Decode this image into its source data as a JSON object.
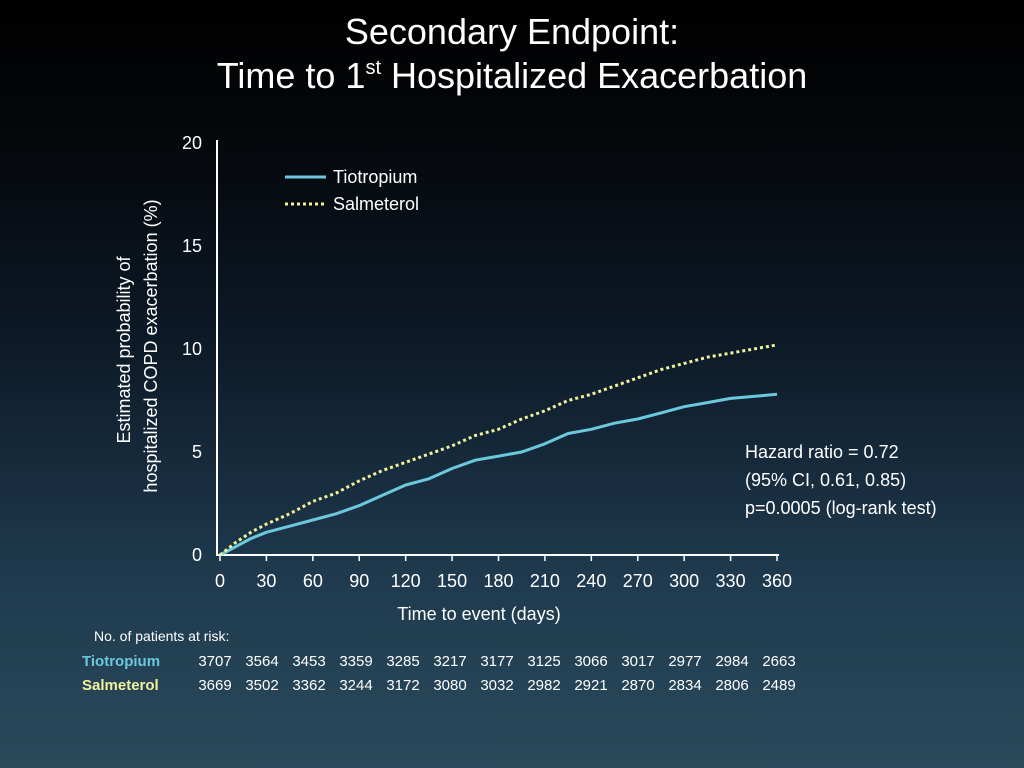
{
  "title": {
    "line1": "Secondary Endpoint:",
    "line2_prefix": "Time to 1",
    "line2_sup": "st",
    "line2_suffix": " Hospitalized Exacerbation"
  },
  "colors": {
    "tiotropium": "#6cc8dd",
    "salmeterol": "#f2f29a",
    "axis": "#ffffff"
  },
  "hazard": {
    "line1": "Hazard ratio = 0.72",
    "line2": "(95% CI, 0.61, 0.85)",
    "line3": "p=0.0005 (log-rank test)"
  },
  "risk_table": {
    "caption": "No. of patients at risk:",
    "rows": [
      {
        "name": "Tiotropium",
        "values": [
          "3707",
          "3564",
          "3453",
          "3359",
          "3285",
          "3217",
          "3177",
          "3125",
          "3066",
          "3017",
          "2977",
          "2984",
          "2663"
        ]
      },
      {
        "name": "Salmeterol",
        "values": [
          "3669",
          "3502",
          "3362",
          "3244",
          "3172",
          "3080",
          "3032",
          "2982",
          "2921",
          "2870",
          "2834",
          "2806",
          "2489"
        ]
      }
    ]
  },
  "chart_data": {
    "type": "line",
    "xlabel": "Time to event (days)",
    "ylabel_line1": "Estimated probability of",
    "ylabel_line2": "hospitalized COPD exacerbation (%)",
    "xlim": [
      0,
      360
    ],
    "ylim": [
      0,
      20
    ],
    "xticks": [
      0,
      30,
      60,
      90,
      120,
      150,
      180,
      210,
      240,
      270,
      300,
      330,
      360
    ],
    "yticks": [
      0,
      5,
      10,
      15,
      20
    ],
    "grid": false,
    "legend_position": "top-left",
    "series": [
      {
        "name": "Tiotropium",
        "style": "solid",
        "points": [
          [
            0,
            0
          ],
          [
            10,
            0.4
          ],
          [
            20,
            0.8
          ],
          [
            30,
            1.1
          ],
          [
            45,
            1.4
          ],
          [
            60,
            1.7
          ],
          [
            75,
            2.0
          ],
          [
            90,
            2.4
          ],
          [
            105,
            2.9
          ],
          [
            120,
            3.4
          ],
          [
            135,
            3.7
          ],
          [
            150,
            4.2
          ],
          [
            165,
            4.6
          ],
          [
            180,
            4.8
          ],
          [
            195,
            5.0
          ],
          [
            210,
            5.4
          ],
          [
            225,
            5.9
          ],
          [
            240,
            6.1
          ],
          [
            255,
            6.4
          ],
          [
            270,
            6.6
          ],
          [
            285,
            6.9
          ],
          [
            300,
            7.2
          ],
          [
            315,
            7.4
          ],
          [
            330,
            7.6
          ],
          [
            345,
            7.7
          ],
          [
            360,
            7.8
          ]
        ]
      },
      {
        "name": "Salmeterol",
        "style": "dotted",
        "points": [
          [
            0,
            0
          ],
          [
            10,
            0.6
          ],
          [
            20,
            1.1
          ],
          [
            30,
            1.5
          ],
          [
            45,
            2.0
          ],
          [
            60,
            2.6
          ],
          [
            75,
            3.0
          ],
          [
            90,
            3.6
          ],
          [
            105,
            4.1
          ],
          [
            120,
            4.5
          ],
          [
            135,
            4.9
          ],
          [
            150,
            5.3
          ],
          [
            165,
            5.8
          ],
          [
            180,
            6.1
          ],
          [
            195,
            6.6
          ],
          [
            210,
            7.0
          ],
          [
            225,
            7.5
          ],
          [
            240,
            7.8
          ],
          [
            255,
            8.2
          ],
          [
            270,
            8.6
          ],
          [
            285,
            9.0
          ],
          [
            300,
            9.3
          ],
          [
            315,
            9.6
          ],
          [
            330,
            9.8
          ],
          [
            345,
            10.0
          ],
          [
            360,
            10.2
          ]
        ]
      }
    ]
  }
}
